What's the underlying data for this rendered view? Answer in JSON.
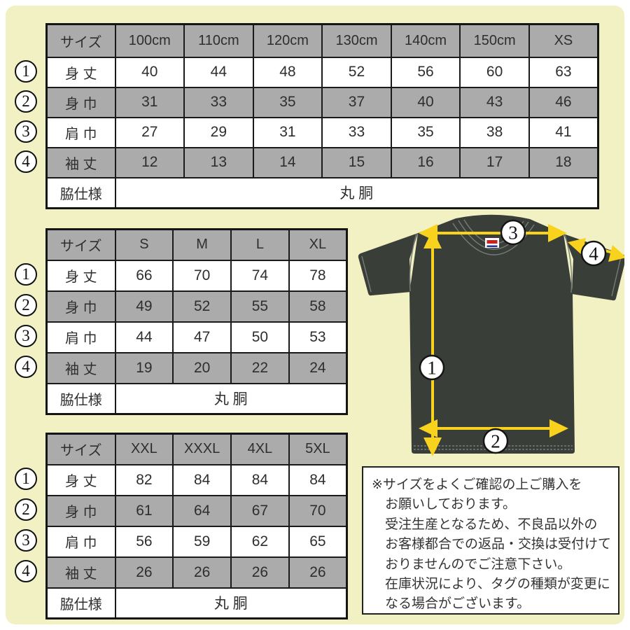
{
  "colors": {
    "canvas": "#f1f1c3",
    "table_gray": "#ababab",
    "shirt": "#3a3e39",
    "arrow": "#f8d21c",
    "seam": "#787c76"
  },
  "tables": [
    {
      "name": "kids-sizes",
      "size_header": "サイズ",
      "columns": [
        "100cm",
        "110cm",
        "120cm",
        "130cm",
        "140cm",
        "150cm",
        "XS"
      ],
      "rows": [
        {
          "num": "1",
          "label": "身 丈",
          "values": [
            "40",
            "44",
            "48",
            "52",
            "56",
            "60",
            "63"
          ]
        },
        {
          "num": "2",
          "label": "身 巾",
          "values": [
            "31",
            "33",
            "35",
            "37",
            "40",
            "43",
            "46"
          ]
        },
        {
          "num": "3",
          "label": "肩 巾",
          "values": [
            "27",
            "29",
            "31",
            "33",
            "35",
            "38",
            "41"
          ]
        },
        {
          "num": "4",
          "label": "袖 丈",
          "values": [
            "12",
            "13",
            "14",
            "15",
            "16",
            "17",
            "18"
          ]
        }
      ],
      "footer_label": "脇仕様",
      "footer_value": "丸 胴"
    },
    {
      "name": "adult-sizes",
      "size_header": "サイズ",
      "columns": [
        "S",
        "M",
        "L",
        "XL"
      ],
      "rows": [
        {
          "num": "1",
          "label": "身 丈",
          "values": [
            "66",
            "70",
            "74",
            "78"
          ]
        },
        {
          "num": "2",
          "label": "身 巾",
          "values": [
            "49",
            "52",
            "55",
            "58"
          ]
        },
        {
          "num": "3",
          "label": "肩 巾",
          "values": [
            "44",
            "47",
            "50",
            "53"
          ]
        },
        {
          "num": "4",
          "label": "袖 丈",
          "values": [
            "19",
            "20",
            "22",
            "24"
          ]
        }
      ],
      "footer_label": "脇仕様",
      "footer_value": "丸 胴"
    },
    {
      "name": "big-sizes",
      "size_header": "サイズ",
      "columns": [
        "XXL",
        "XXXL",
        "4XL",
        "5XL"
      ],
      "rows": [
        {
          "num": "1",
          "label": "身 丈",
          "values": [
            "82",
            "84",
            "84",
            "84"
          ]
        },
        {
          "num": "2",
          "label": "身 巾",
          "values": [
            "61",
            "64",
            "67",
            "70"
          ]
        },
        {
          "num": "3",
          "label": "肩 巾",
          "values": [
            "56",
            "59",
            "62",
            "65"
          ]
        },
        {
          "num": "4",
          "label": "袖 丈",
          "values": [
            "26",
            "26",
            "26",
            "26"
          ]
        }
      ],
      "footer_label": "脇仕様",
      "footer_value": "丸 胴"
    }
  ],
  "diagram": {
    "markers": [
      {
        "id": "body-length",
        "label": "1"
      },
      {
        "id": "body-width",
        "label": "2"
      },
      {
        "id": "shoulder-width",
        "label": "3"
      },
      {
        "id": "sleeve-length",
        "label": "4"
      }
    ]
  },
  "notice": {
    "lines": [
      "※サイズをよくご確認の上ご購入を",
      "お願いしております。",
      "受注生産となるため、不良品以外の",
      "お客様都合での返品・交換は受付けて",
      "おりませんのでご注意下さい。",
      "在庫状況により、タグの種類が変更に",
      "なる場合がございます。"
    ]
  }
}
